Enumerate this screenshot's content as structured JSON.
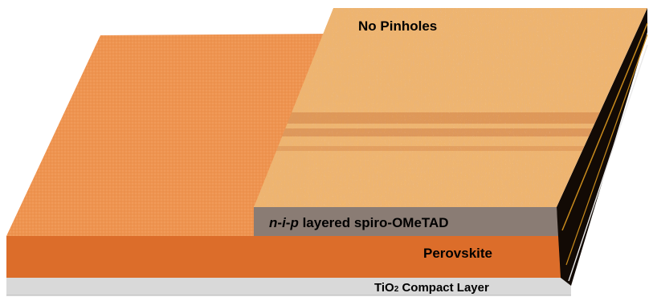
{
  "labels": {
    "top_annotation": "No Pinholes",
    "hole_layer_prefix_n": "n",
    "hole_layer_prefix_dash1": "-",
    "hole_layer_prefix_i": "i",
    "hole_layer_prefix_dash2": "-",
    "hole_layer_prefix_p": "p",
    "hole_layer_suffix": " layered spiro-OMeTAD",
    "perovskite_layer": "Perovskite",
    "tio2_prefix": "TiO",
    "tio2_subscript": "2",
    "tio2_suffix": " Compact Layer"
  },
  "colors": {
    "perovskite_top": "#ee9450",
    "perovskite_front": "#dc6d2a",
    "tio2_front": "#d9d9d9",
    "spiro_front": "#8a7c74",
    "spiro_top_base": "#efb56e",
    "side_dark": "#120a05",
    "side_stripe": "#c88a1c"
  }
}
